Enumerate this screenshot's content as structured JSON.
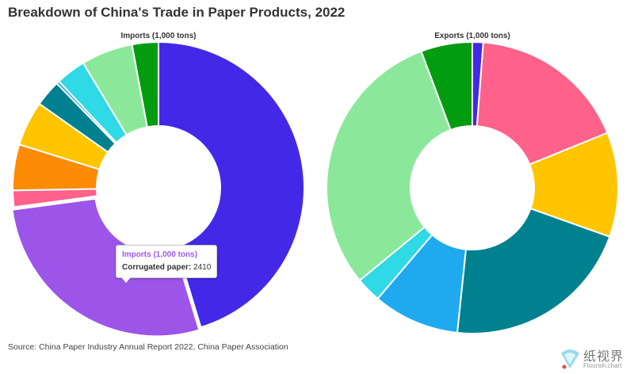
{
  "title": "Breakdown of China's Trade in Paper Products, 2022",
  "source": "Source: China Paper Industry Annual Report 2022, China Paper Association",
  "tooltip": {
    "title": "Imports (1,000 tons)",
    "name": "Corrugated paper",
    "value": "2410"
  },
  "watermark": {
    "text": "纸视界",
    "sub": "Flourish.chart"
  },
  "colors": {
    "blue": "#4328e7",
    "purple": "#9c55e8",
    "pink": "#fe6189",
    "orange": "#fd8b06",
    "yellow": "#fec500",
    "teal": "#01818f",
    "skyblue": "#1faaf0",
    "cyan": "#2fd9e5",
    "lightgreen": "#8be89b",
    "green": "#029c10"
  },
  "chart_data": [
    {
      "type": "pie",
      "title": "Imports (1,000 tons)",
      "slices": [
        {
          "value": 3960,
          "color": "#4328e7"
        },
        {
          "value": 2410,
          "color": "#9c55e8"
        },
        {
          "value": 160,
          "color": "#fe6189"
        },
        {
          "value": 445,
          "color": "#fd8b06"
        },
        {
          "value": 435,
          "color": "#fec500"
        },
        {
          "value": 255,
          "color": "#01818f"
        },
        {
          "value": 30,
          "color": "#1faaf0"
        },
        {
          "value": 290,
          "color": "#2fd9e5"
        },
        {
          "value": 500,
          "color": "#8be89b"
        },
        {
          "value": 255,
          "color": "#029c10"
        }
      ]
    },
    {
      "type": "pie",
      "title": "Exports (1,000 tons)",
      "slices": [
        {
          "value": 120,
          "color": "#4328e7"
        },
        {
          "value": 1765,
          "color": "#fe6189"
        },
        {
          "value": 1160,
          "color": "#fec500"
        },
        {
          "value": 2120,
          "color": "#01818f"
        },
        {
          "value": 960,
          "color": "#1faaf0"
        },
        {
          "value": 280,
          "color": "#2fd9e5"
        },
        {
          "value": 3025,
          "color": "#8be89b"
        },
        {
          "value": 570,
          "color": "#029c10"
        }
      ]
    }
  ]
}
